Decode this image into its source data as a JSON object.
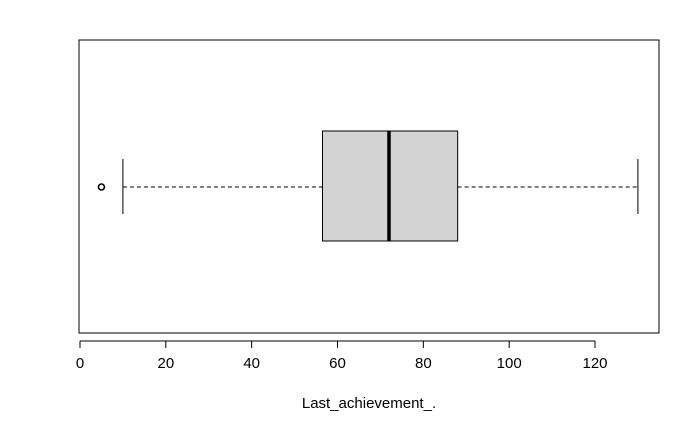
{
  "chart_data": {
    "type": "boxplot",
    "orientation": "horizontal",
    "xlabel": "Last_achievement_.",
    "ylabel": "",
    "title": "",
    "xlim": [
      0,
      135
    ],
    "xticks": [
      0,
      20,
      40,
      60,
      80,
      100,
      120
    ],
    "xtick_labels": [
      "0",
      "20",
      "40",
      "60",
      "80",
      "100",
      "120"
    ],
    "grid": false,
    "box": {
      "whisker_low": 10,
      "q1": 56.5,
      "median": 72,
      "q3": 88,
      "whisker_high": 130,
      "outliers": [
        5
      ]
    },
    "colors": {
      "box_fill": "#d3d3d3",
      "stroke": "#000000"
    }
  }
}
